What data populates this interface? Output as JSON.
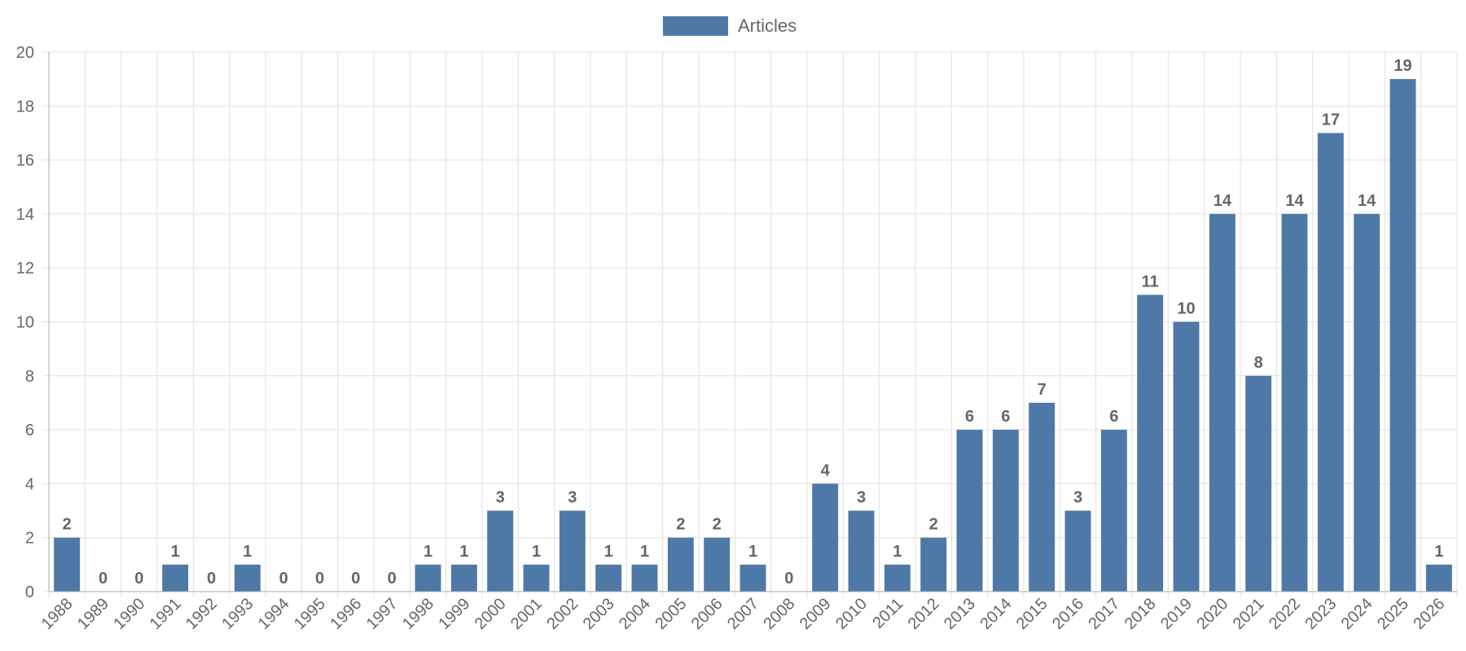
{
  "chart_data": {
    "type": "bar",
    "legend": {
      "position": "top-center",
      "entries": [
        {
          "name": "Articles",
          "color": "#4e79a7"
        }
      ]
    },
    "categories": [
      "1988",
      "1989",
      "1990",
      "1991",
      "1992",
      "1993",
      "1994",
      "1995",
      "1996",
      "1997",
      "1998",
      "1999",
      "2000",
      "2001",
      "2002",
      "2003",
      "2004",
      "2005",
      "2006",
      "2007",
      "2008",
      "2009",
      "2010",
      "2011",
      "2012",
      "2013",
      "2014",
      "2015",
      "2016",
      "2017",
      "2018",
      "2019",
      "2020",
      "2021",
      "2022",
      "2023",
      "2024",
      "2025",
      "2026"
    ],
    "series": [
      {
        "name": "Articles",
        "color": "#4e79a7",
        "values": [
          2,
          0,
          0,
          1,
          0,
          1,
          0,
          0,
          0,
          0,
          1,
          1,
          3,
          1,
          3,
          1,
          1,
          2,
          2,
          1,
          0,
          4,
          3,
          1,
          2,
          6,
          6,
          7,
          3,
          6,
          11,
          10,
          14,
          8,
          14,
          17,
          14,
          19,
          1
        ]
      }
    ],
    "ylim": [
      0,
      20
    ],
    "yticks": [
      0,
      2,
      4,
      6,
      8,
      10,
      12,
      14,
      16,
      18,
      20
    ],
    "grid": true,
    "data_labels": true
  }
}
